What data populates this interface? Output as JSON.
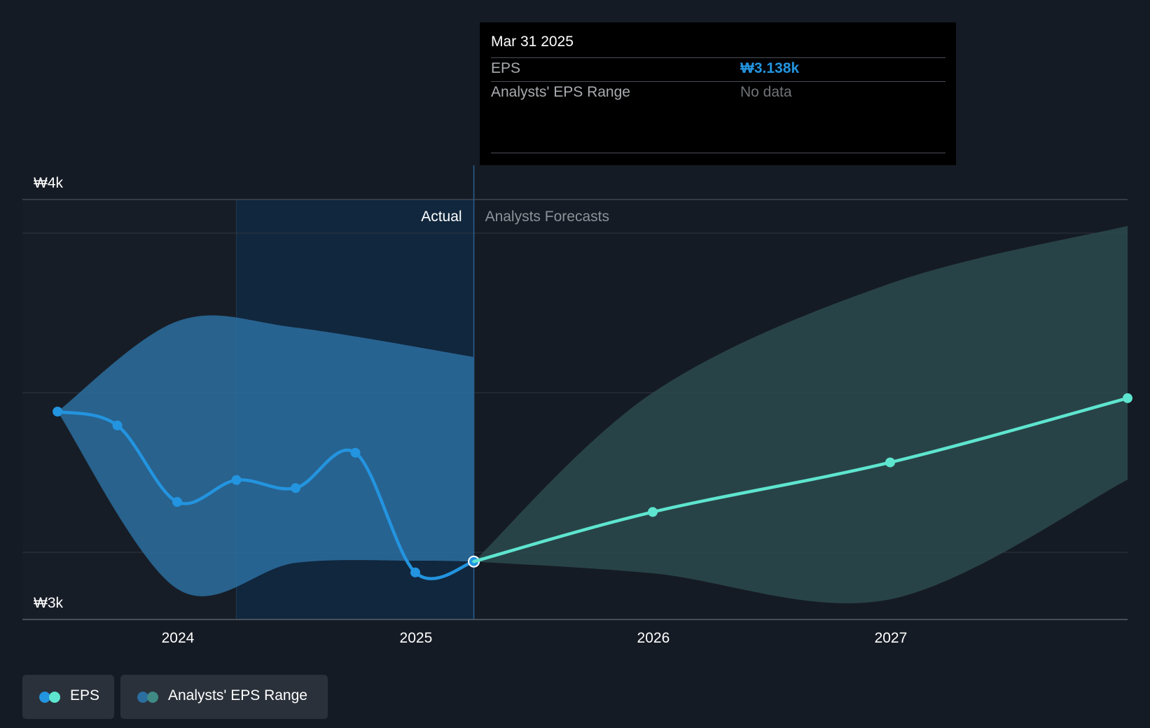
{
  "chart_data": {
    "type": "line",
    "y_axis": {
      "ticks": [
        "₩4k",
        "₩3k"
      ],
      "range": [
        3000,
        4000
      ],
      "grid_values": [
        3920,
        3540,
        3160
      ]
    },
    "x_axis": {
      "ticks": [
        "2024",
        "2025",
        "2026",
        "2027"
      ],
      "range": [
        "2023-05-07",
        "2027-12-31"
      ]
    },
    "region_labels": {
      "actual": "Actual",
      "forecast": "Analysts Forecasts"
    },
    "divider_date": "2025-03-31",
    "highlight_start": "2024-03-31",
    "series": [
      {
        "name": "EPS",
        "color": "#2394df",
        "points": [
          {
            "x": "2023-06-30",
            "y": 3495
          },
          {
            "x": "2023-09-30",
            "y": 3462
          },
          {
            "x": "2023-12-31",
            "y": 3280
          },
          {
            "x": "2024-03-31",
            "y": 3332
          },
          {
            "x": "2024-06-30",
            "y": 3313
          },
          {
            "x": "2024-09-30",
            "y": 3397
          },
          {
            "x": "2024-12-31",
            "y": 3112
          },
          {
            "x": "2025-03-31",
            "y": 3138
          }
        ]
      },
      {
        "name": "EPS",
        "color": "#5ee5cf",
        "points": [
          {
            "x": "2025-03-31",
            "y": 3138
          },
          {
            "x": "2025-12-31",
            "y": 3256
          },
          {
            "x": "2026-12-31",
            "y": 3374
          },
          {
            "x": "2027-12-31",
            "y": 3527
          }
        ]
      }
    ],
    "ranges": [
      {
        "name": "Analysts' EPS Range",
        "color": "#2b6ea0",
        "upper": [
          {
            "x": "2023-06-30",
            "y": 3495
          },
          {
            "x": "2023-12-31",
            "y": 3710
          },
          {
            "x": "2024-06-30",
            "y": 3695
          },
          {
            "x": "2025-03-31",
            "y": 3625
          }
        ],
        "lower": [
          {
            "x": "2023-06-30",
            "y": 3495
          },
          {
            "x": "2023-12-31",
            "y": 3073
          },
          {
            "x": "2024-06-30",
            "y": 3135
          },
          {
            "x": "2024-12-31",
            "y": 3140
          },
          {
            "x": "2025-03-31",
            "y": 3138
          }
        ]
      },
      {
        "name": "Analysts' EPS Range",
        "color": "#2c4a4d",
        "upper": [
          {
            "x": "2025-03-31",
            "y": 3138
          },
          {
            "x": "2025-12-31",
            "y": 3540
          },
          {
            "x": "2026-12-31",
            "y": 3800
          },
          {
            "x": "2027-12-31",
            "y": 3937
          }
        ],
        "lower": [
          {
            "x": "2025-03-31",
            "y": 3138
          },
          {
            "x": "2025-12-31",
            "y": 3110
          },
          {
            "x": "2026-12-31",
            "y": 3048
          },
          {
            "x": "2027-12-31",
            "y": 3333
          }
        ]
      }
    ]
  },
  "tooltip": {
    "date": "Mar 31 2025",
    "rows": [
      {
        "label": "EPS",
        "value": "₩3.138k",
        "color": "#2394df"
      },
      {
        "label": "Analysts' EPS Range",
        "value": "No data",
        "color": "#6f7379"
      }
    ]
  },
  "legend": [
    {
      "label": "EPS",
      "colors": [
        "#2394df",
        "#5ee5cf"
      ]
    },
    {
      "label": "Analysts' EPS Range",
      "colors": [
        "#2b6ea0",
        "#3f8a85"
      ]
    }
  ]
}
